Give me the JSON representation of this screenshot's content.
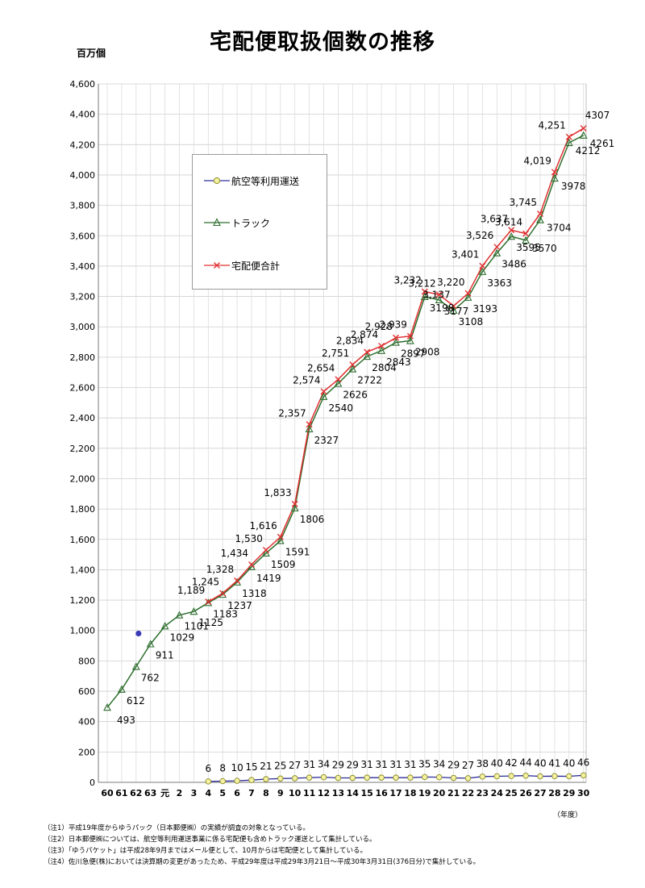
{
  "title": "宅配便取扱個数の推移",
  "unit_label": "百万個",
  "x_unit_label": "（年度）",
  "notes": [
    "（注1）平成19年度からゆうパック（日本郵便㈱）の実績が調査の対象となっている。",
    "（注2）日本郵便㈱については、航空等利用運送事業に係る宅配便も含めトラック運送として集計している。",
    "（注3）「ゆうパケット」は平成28年9月まではメール便として、10月からは宅配便として集計している。",
    "（注4）佐川急便(株)においては決算期の変更があったため、平成29年度は平成29年3月21日～平成30年3月31日(376日分)で集計している。"
  ],
  "colors": {
    "air": "#2d2d9a",
    "truck": "#2e6e2e",
    "total": "#e03030",
    "air_marker_fill": "#f4f1a0",
    "stray_point": "#3a3ab8"
  },
  "chart_data": {
    "type": "line",
    "title": "宅配便取扱個数の推移",
    "ylabel": "百万個",
    "xlabel": "（年度）",
    "ylim": [
      0,
      4600
    ],
    "yticks": [
      "0",
      "200",
      "400",
      "600",
      "800",
      "1,000",
      "1,200",
      "1,400",
      "1,600",
      "1,800",
      "2,000",
      "2,200",
      "2,400",
      "2,600",
      "2,800",
      "3,000",
      "3,200",
      "3,400",
      "3,600",
      "3,800",
      "4,000",
      "4,200",
      "4,400",
      "4,600"
    ],
    "grid": true,
    "legend_position": "upper-left",
    "x": [
      "60",
      "61",
      "62",
      "63",
      "元",
      "2",
      "3",
      "4",
      "5",
      "6",
      "7",
      "8",
      "9",
      "10",
      "11",
      "12",
      "13",
      "14",
      "15",
      "16",
      "17",
      "18",
      "19",
      "20",
      "21",
      "22",
      "23",
      "24",
      "25",
      "26",
      "27",
      "28",
      "29",
      "30"
    ],
    "series": [
      {
        "name": "航空等利用運送",
        "marker": "circle",
        "values": [
          null,
          null,
          null,
          null,
          null,
          null,
          null,
          6,
          8,
          10,
          15,
          21,
          25,
          27,
          31,
          34,
          29,
          29,
          31,
          31,
          31,
          31,
          35,
          34,
          29,
          27,
          38,
          40,
          42,
          44,
          40,
          41,
          40,
          46
        ],
        "labels": [
          "",
          "",
          "",
          "",
          "",
          "",
          "",
          "6",
          "8",
          "10",
          "15",
          "21",
          "25",
          "27",
          "31",
          "34",
          "29",
          "29",
          "31",
          "31",
          "31",
          "31",
          "35",
          "34",
          "29",
          "27",
          "38",
          "40",
          "42",
          "44",
          "40",
          "41",
          "40",
          "46"
        ]
      },
      {
        "name": "トラック",
        "marker": "triangle",
        "values": [
          493,
          612,
          762,
          911,
          1029,
          1101,
          1125,
          1183,
          1237,
          1318,
          1419,
          1509,
          1591,
          1806,
          2327,
          2540,
          2626,
          2722,
          2804,
          2843,
          2897,
          2908,
          3198,
          3177,
          3108,
          3193,
          3363,
          3486,
          3595,
          3570,
          3704,
          3978,
          4212,
          4261
        ],
        "labels": [
          "493",
          "612",
          "762",
          "911",
          "1029",
          "1101",
          "1125",
          "1183",
          "1237",
          "1318",
          "1419",
          "1509",
          "1591",
          "1806",
          "2327",
          "2540",
          "2626",
          "2722",
          "2804",
          "2843",
          "2897",
          "2908",
          "3198",
          "3177",
          "3108",
          "3193",
          "3363",
          "3486",
          "3595",
          "3570",
          "3704",
          "3978",
          "4212",
          "4261"
        ]
      },
      {
        "name": "宅配便合計",
        "marker": "x",
        "values": [
          null,
          null,
          null,
          null,
          null,
          null,
          null,
          1189,
          1245,
          1328,
          1434,
          1530,
          1616,
          1833,
          2357,
          2574,
          2654,
          2751,
          2834,
          2874,
          2928,
          2939,
          3232,
          3212,
          3137,
          3220,
          3401,
          3526,
          3637,
          3614,
          3745,
          4019,
          4251,
          4307
        ],
        "labels": [
          "",
          "",
          "",
          "",
          "",
          "",
          "",
          "1,189",
          "1,245",
          "1,328",
          "1,434",
          "1,530",
          "1,616",
          "1,833",
          "2,357",
          "2,574",
          "2,654",
          "2,751",
          "2,834",
          "2,874",
          "2,928",
          "2,939",
          "3,232",
          "3,212",
          "3,137",
          "3,220",
          "3,401",
          "3,526",
          "3,637",
          "3,614",
          "3,745",
          "4,019",
          "4,251",
          "4307"
        ]
      }
    ],
    "extra_points": [
      {
        "x": "62",
        "value": 980
      }
    ]
  }
}
